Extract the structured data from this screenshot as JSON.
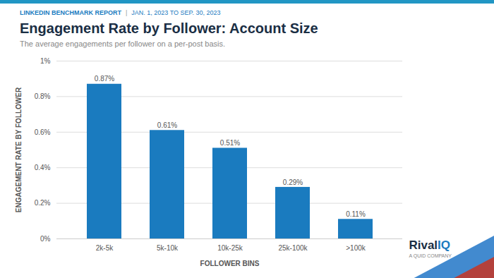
{
  "chart_data": {
    "type": "bar",
    "title": "Engagement Rate by Follower: Account Size",
    "subtitle": "The average engagements per follower on a per-post basis.",
    "annotations": [
      "LINKEDIN BENCHMARK REPORT",
      "|",
      "JAN. 1, 2023 TO SEP. 30, 2023",
      "Rival",
      "IQ",
      "A QUID COMPANY"
    ],
    "xlabel": "FOLLOWER BINS",
    "ylabel": "ENGAGEMENT RATE BY FOLLOWER",
    "categories": [
      "2k-5k",
      "5k-10k",
      "10k-25k",
      "25k-100k",
      ">100k"
    ],
    "values": [
      0.0087,
      0.0061,
      0.0051,
      0.0029,
      0.0011
    ],
    "value_labels": [
      "0.87%",
      "0.61%",
      "0.51%",
      "0.29%",
      "0.11%"
    ],
    "data_labels": true,
    "color": "#1a7bbf",
    "ylim": [
      0,
      0.01
    ],
    "yticks": [
      {
        "value": 0,
        "label": "0%"
      },
      {
        "value": 0.002,
        "label": "0.2%"
      },
      {
        "value": 0.004,
        "label": "0.4%"
      },
      {
        "value": 0.006,
        "label": "0.6%"
      },
      {
        "value": 0.008,
        "label": "0.8%"
      },
      {
        "value": 0.01,
        "label": "1%"
      }
    ],
    "grid": true
  }
}
